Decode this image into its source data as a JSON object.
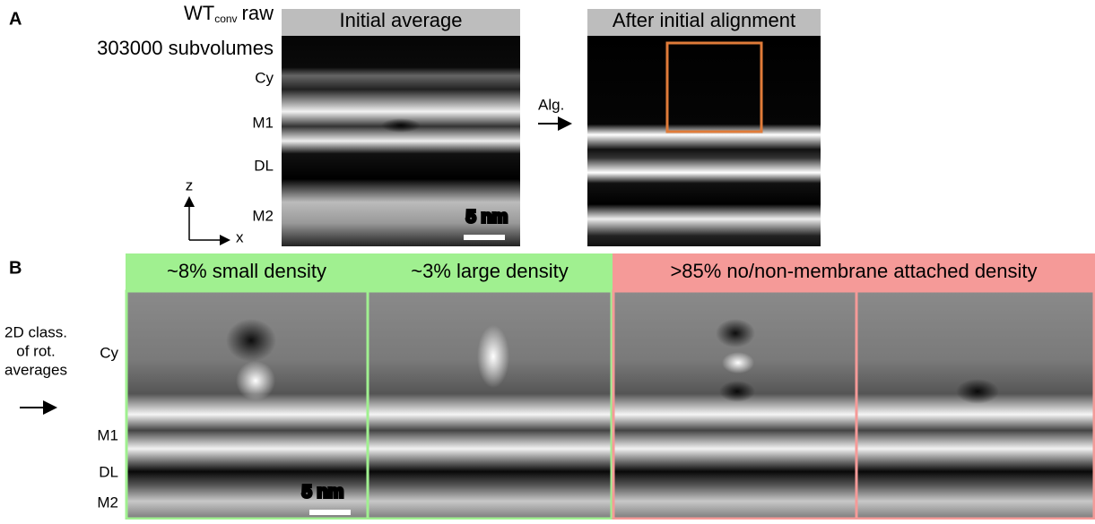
{
  "panel_a": {
    "label": "A",
    "sample_name": "WT",
    "sample_subscript": "conv",
    "sample_suffix": "raw",
    "count": "303000 subvolumes",
    "layers": [
      "Cy",
      "M1",
      "DL",
      "M2"
    ],
    "axis_z": "z",
    "axis_x": "x",
    "images": [
      "Initial average",
      "After initial alignment"
    ],
    "arrow_label": "Alg.",
    "scale_bar": "5 nm"
  },
  "panel_b": {
    "label": "B",
    "method": [
      "2D class.",
      "of rot.",
      "averages"
    ],
    "layers": [
      "Cy",
      "M1",
      "DL",
      "M2"
    ],
    "groups": [
      "~8% small density",
      "~3% large density",
      ">85% no/non-membrane attached density"
    ],
    "scale_bar": "5 nm"
  }
}
